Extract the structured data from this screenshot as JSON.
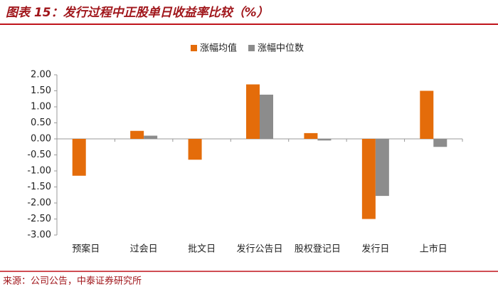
{
  "chart_data": {
    "type": "bar",
    "title": "图表 15：发行过程中正股单日收益率比较（%）",
    "source": "来源：公司公告，中泰证券研究所",
    "categories": [
      "预案日",
      "过会日",
      "批文日",
      "发行公告日",
      "股权登记日",
      "发行日",
      "上市日"
    ],
    "series": [
      {
        "name": "涨幅均值",
        "color": "#e46c0a",
        "values": [
          -1.15,
          0.25,
          -0.65,
          1.7,
          0.18,
          -2.5,
          1.5
        ]
      },
      {
        "name": "涨幅中位数",
        "color": "#8c8c8c",
        "values": [
          0,
          0.1,
          0,
          1.38,
          -0.05,
          -1.78,
          -0.25
        ]
      }
    ],
    "ylim": [
      -3,
      2
    ],
    "yticks": [
      {
        "value": 2,
        "label": "2.00"
      },
      {
        "value": 1.5,
        "label": "1.50"
      },
      {
        "value": 1,
        "label": "1.00"
      },
      {
        "value": 0.5,
        "label": "0.50"
      },
      {
        "value": 0,
        "label": "0.00"
      },
      {
        "value": -0.5,
        "label": "-0.50"
      },
      {
        "value": -1,
        "label": "-1.00"
      },
      {
        "value": -1.5,
        "label": "-1.50"
      },
      {
        "value": -2,
        "label": "-2.00"
      },
      {
        "value": -2.5,
        "label": "-2.50"
      },
      {
        "value": -3,
        "label": "-3.00"
      }
    ],
    "grid": false
  }
}
